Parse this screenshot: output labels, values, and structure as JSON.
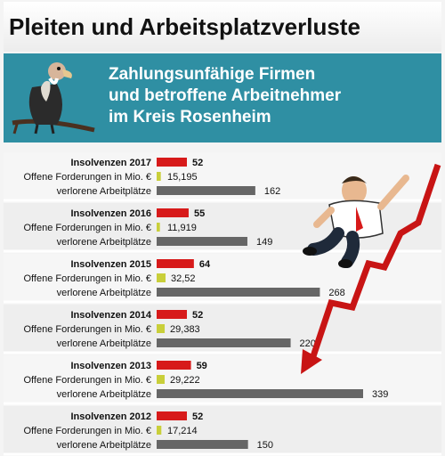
{
  "title": "Pleiten und Arbeitsplatzverluste",
  "subtitle_lines": [
    "Zahlungsunfähige Firmen",
    "und betroffene Arbeitnehmer",
    "im Kreis Rosenheim"
  ],
  "colors": {
    "insolvencies": "#d71a1a",
    "claims": "#c9cf3a",
    "jobs": "#666666",
    "band": "#2f8fa3"
  },
  "chart_data": {
    "type": "bar",
    "row_labels": {
      "claims": "Offene Forderungen in Mio. €",
      "jobs": "verlorene Arbeitplätze"
    },
    "groups": [
      {
        "header": "Insolvenzen 2017",
        "year": "2017",
        "insolvenzen": 52,
        "forderungen": 15.195,
        "forderungen_label": "15,195",
        "arbeitsplaetze": 162
      },
      {
        "header": "Insolvenzen 2016",
        "year": "2016",
        "insolvenzen": 55,
        "forderungen": 11.919,
        "forderungen_label": "11,919",
        "arbeitsplaetze": 149
      },
      {
        "header": "Insolvenzen 2015",
        "year": "2015",
        "insolvenzen": 64,
        "forderungen": 32.52,
        "forderungen_label": "32,52",
        "arbeitsplaetze": 268
      },
      {
        "header": "Insolvenzen 2014",
        "year": "2014",
        "insolvenzen": 52,
        "forderungen": 29.383,
        "forderungen_label": "29,383",
        "arbeitsplaetze": 220
      },
      {
        "header": "Insolvenzen 2013",
        "year": "2013",
        "insolvenzen": 59,
        "forderungen": 29.222,
        "forderungen_label": "29,222",
        "arbeitsplaetze": 339
      },
      {
        "header": "Insolvenzen 2012",
        "year": "2012",
        "insolvenzen": 52,
        "forderungen": 17.214,
        "forderungen_label": "17,214",
        "arbeitsplaetze": 150
      }
    ]
  }
}
